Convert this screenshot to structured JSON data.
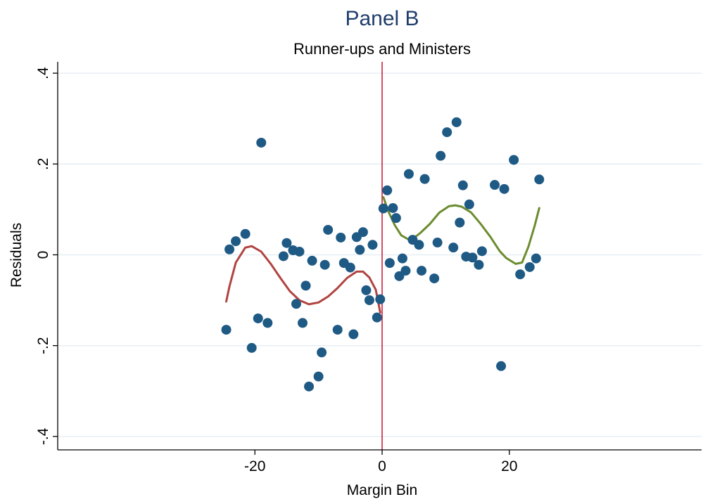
{
  "chart_data": {
    "type": "scatter",
    "title": "Panel B",
    "subtitle": "Runner-ups and Ministers",
    "xlabel": "Margin Bin",
    "ylabel": "Residuals",
    "xlim": [
      -25,
      25
    ],
    "ylim": [
      -0.42,
      0.42
    ],
    "x_ticks": [
      -20,
      0,
      20
    ],
    "x_tick_labels": [
      "-20",
      "0",
      "20"
    ],
    "y_ticks": [
      -0.4,
      -0.2,
      0,
      0.2,
      0.4
    ],
    "y_tick_labels": [
      "-.4",
      "-.2",
      "0",
      ".2",
      ".4"
    ],
    "grid": "horizontal",
    "cutoff_x": 0,
    "colors": {
      "points": "#1f5a85",
      "fit_left": "#b04440",
      "fit_right": "#6b8c2f",
      "cutoff": "#c8102e",
      "title": "#1f3d6b",
      "grid": "#e6eef3"
    },
    "series": [
      {
        "points": [
          {
            "x": -24.5,
            "y": -0.165
          },
          {
            "x": -24.0,
            "y": 0.012
          },
          {
            "x": -23.0,
            "y": 0.03
          },
          {
            "x": -21.5,
            "y": 0.046
          },
          {
            "x": -20.5,
            "y": -0.205
          },
          {
            "x": -19.5,
            "y": -0.14
          },
          {
            "x": -19.0,
            "y": 0.247
          },
          {
            "x": -18.0,
            "y": -0.15
          },
          {
            "x": -15.5,
            "y": -0.003
          },
          {
            "x": -15.0,
            "y": 0.026
          },
          {
            "x": -14.0,
            "y": 0.01
          },
          {
            "x": -13.5,
            "y": -0.108
          },
          {
            "x": -13.0,
            "y": 0.007
          },
          {
            "x": -12.5,
            "y": -0.15
          },
          {
            "x": -12.0,
            "y": -0.068
          },
          {
            "x": -11.5,
            "y": -0.29
          },
          {
            "x": -11.0,
            "y": -0.013
          },
          {
            "x": -10.0,
            "y": -0.268
          },
          {
            "x": -9.5,
            "y": -0.215
          },
          {
            "x": -9.0,
            "y": -0.022
          },
          {
            "x": -8.5,
            "y": 0.055
          },
          {
            "x": -7.0,
            "y": -0.165
          },
          {
            "x": -6.5,
            "y": 0.038
          },
          {
            "x": -6.0,
            "y": -0.018
          },
          {
            "x": -5.0,
            "y": -0.028
          },
          {
            "x": -4.5,
            "y": -0.175
          },
          {
            "x": -4.0,
            "y": 0.039
          },
          {
            "x": -3.5,
            "y": 0.011
          },
          {
            "x": -3.0,
            "y": 0.05
          },
          {
            "x": -2.5,
            "y": -0.078
          },
          {
            "x": -2.0,
            "y": -0.1
          },
          {
            "x": -1.5,
            "y": 0.022
          },
          {
            "x": -0.8,
            "y": -0.138
          },
          {
            "x": -0.3,
            "y": -0.098
          },
          {
            "x": 0.2,
            "y": 0.102
          },
          {
            "x": 0.8,
            "y": 0.142
          },
          {
            "x": 1.2,
            "y": -0.018
          },
          {
            "x": 1.7,
            "y": 0.103
          },
          {
            "x": 2.2,
            "y": 0.081
          },
          {
            "x": 2.7,
            "y": -0.047
          },
          {
            "x": 3.2,
            "y": -0.008
          },
          {
            "x": 3.7,
            "y": -0.035
          },
          {
            "x": 4.2,
            "y": 0.178
          },
          {
            "x": 4.8,
            "y": 0.033
          },
          {
            "x": 5.8,
            "y": 0.022
          },
          {
            "x": 6.2,
            "y": -0.035
          },
          {
            "x": 6.7,
            "y": 0.167
          },
          {
            "x": 8.2,
            "y": -0.052
          },
          {
            "x": 8.7,
            "y": 0.027
          },
          {
            "x": 9.2,
            "y": 0.218
          },
          {
            "x": 10.2,
            "y": 0.27
          },
          {
            "x": 11.2,
            "y": 0.016
          },
          {
            "x": 11.7,
            "y": 0.292
          },
          {
            "x": 12.2,
            "y": 0.071
          },
          {
            "x": 12.7,
            "y": 0.153
          },
          {
            "x": 13.2,
            "y": -0.004
          },
          {
            "x": 13.7,
            "y": 0.111
          },
          {
            "x": 14.2,
            "y": -0.006
          },
          {
            "x": 15.2,
            "y": -0.022
          },
          {
            "x": 15.7,
            "y": 0.008
          },
          {
            "x": 17.7,
            "y": 0.154
          },
          {
            "x": 18.7,
            "y": -0.245
          },
          {
            "x": 19.2,
            "y": 0.145
          },
          {
            "x": 20.7,
            "y": 0.209
          },
          {
            "x": 21.7,
            "y": -0.043
          },
          {
            "x": 23.2,
            "y": -0.027
          },
          {
            "x": 24.2,
            "y": -0.008
          },
          {
            "x": 24.7,
            "y": 0.166
          }
        ]
      },
      {
        "line": [
          {
            "x": -24.5,
            "y": -0.103
          },
          {
            "x": -24.0,
            "y": -0.07
          },
          {
            "x": -23.0,
            "y": -0.017
          },
          {
            "x": -21.5,
            "y": 0.016
          },
          {
            "x": -20.5,
            "y": 0.019
          },
          {
            "x": -19.0,
            "y": 0.007
          },
          {
            "x": -17.5,
            "y": -0.02
          },
          {
            "x": -16.0,
            "y": -0.051
          },
          {
            "x": -14.5,
            "y": -0.08
          },
          {
            "x": -13.0,
            "y": -0.1
          },
          {
            "x": -11.5,
            "y": -0.109
          },
          {
            "x": -10.0,
            "y": -0.105
          },
          {
            "x": -8.5,
            "y": -0.092
          },
          {
            "x": -7.0,
            "y": -0.073
          },
          {
            "x": -5.5,
            "y": -0.051
          },
          {
            "x": -4.0,
            "y": -0.037
          },
          {
            "x": -3.0,
            "y": -0.037
          },
          {
            "x": -2.0,
            "y": -0.05
          },
          {
            "x": -1.0,
            "y": -0.077
          },
          {
            "x": -0.3,
            "y": -0.127
          }
        ]
      },
      {
        "line": [
          {
            "x": 0.2,
            "y": 0.127
          },
          {
            "x": 1.0,
            "y": 0.095
          },
          {
            "x": 2.0,
            "y": 0.065
          },
          {
            "x": 3.0,
            "y": 0.043
          },
          {
            "x": 4.0,
            "y": 0.035
          },
          {
            "x": 5.0,
            "y": 0.037
          },
          {
            "x": 6.0,
            "y": 0.048
          },
          {
            "x": 7.5,
            "y": 0.068
          },
          {
            "x": 9.0,
            "y": 0.093
          },
          {
            "x": 10.5,
            "y": 0.107
          },
          {
            "x": 11.5,
            "y": 0.109
          },
          {
            "x": 12.5,
            "y": 0.106
          },
          {
            "x": 14.0,
            "y": 0.093
          },
          {
            "x": 15.5,
            "y": 0.068
          },
          {
            "x": 17.0,
            "y": 0.04
          },
          {
            "x": 18.5,
            "y": 0.008
          },
          {
            "x": 19.5,
            "y": -0.007
          },
          {
            "x": 21.0,
            "y": -0.02
          },
          {
            "x": 22.0,
            "y": -0.017
          },
          {
            "x": 23.0,
            "y": 0.018
          },
          {
            "x": 24.0,
            "y": 0.065
          },
          {
            "x": 24.7,
            "y": 0.103
          }
        ]
      }
    ]
  }
}
